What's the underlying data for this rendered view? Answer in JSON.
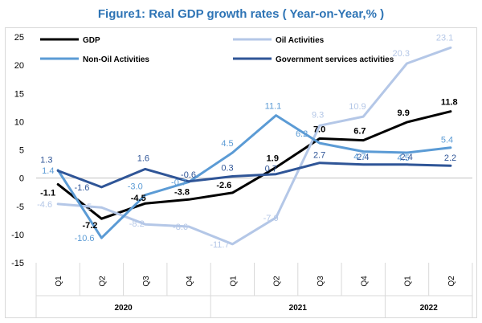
{
  "chart_data": {
    "type": "line",
    "title": "Figure1: Real GDP growth rates ( Year-on-Year,% )",
    "xlabel": "",
    "ylabel": "",
    "ylim": [
      -15,
      25
    ],
    "yticks": [
      25,
      20,
      15,
      10,
      5,
      0,
      -5,
      -10,
      -15
    ],
    "categories": [
      "Q1",
      "Q2",
      "Q3",
      "Q4",
      "Q1",
      "Q2",
      "Q3",
      "Q4",
      "Q1",
      "Q2"
    ],
    "years": [
      {
        "label": "2020",
        "span": 4
      },
      {
        "label": "2021",
        "span": 4
      },
      {
        "label": "2022",
        "span": 2
      }
    ],
    "legend_position": "top",
    "series": [
      {
        "name": "GDP",
        "color": "#000000",
        "values": [
          -1.1,
          -7.2,
          -4.5,
          -3.8,
          -2.6,
          1.9,
          7.0,
          6.7,
          9.9,
          11.8
        ],
        "labels": [
          "-1.1",
          "-7.2",
          "-4.5",
          "-3.8",
          "-2.6",
          "1.9",
          "7.0",
          "6.7",
          "9.9",
          "11.8"
        ]
      },
      {
        "name": "Oil Activities",
        "color": "#b4c7e7",
        "values": [
          -4.6,
          -5.2,
          -8.2,
          -8.6,
          -11.7,
          -7.0,
          9.3,
          10.9,
          20.3,
          23.1
        ],
        "labels": [
          "-4.6",
          "-5",
          "-8.2",
          "-8.6",
          "-11.7",
          "-7.0",
          "9.3",
          "10.9",
          "20.3",
          "23.1"
        ]
      },
      {
        "name": "Non-Oil Activities",
        "color": "#5b9bd5",
        "values": [
          1.4,
          -10.6,
          -3.0,
          -0.7,
          4.5,
          11.1,
          6.2,
          4.7,
          4.5,
          5.4
        ],
        "labels": [
          "1.4",
          "-10.6",
          "-3.0",
          "-0.7",
          "4.5",
          "11.1",
          "6.2",
          "4.7",
          "4.5",
          "5.4"
        ]
      },
      {
        "name": "Government services activities",
        "color": "#2f5597",
        "values": [
          1.3,
          -1.6,
          1.6,
          -0.6,
          0.3,
          0.7,
          2.7,
          2.4,
          2.4,
          2.2
        ],
        "labels": [
          "1.3",
          "-1.6",
          "1.6",
          "-0.6",
          "0.3",
          "0.7",
          "2.7",
          "2.4",
          "2.4",
          "2.2"
        ]
      }
    ]
  }
}
